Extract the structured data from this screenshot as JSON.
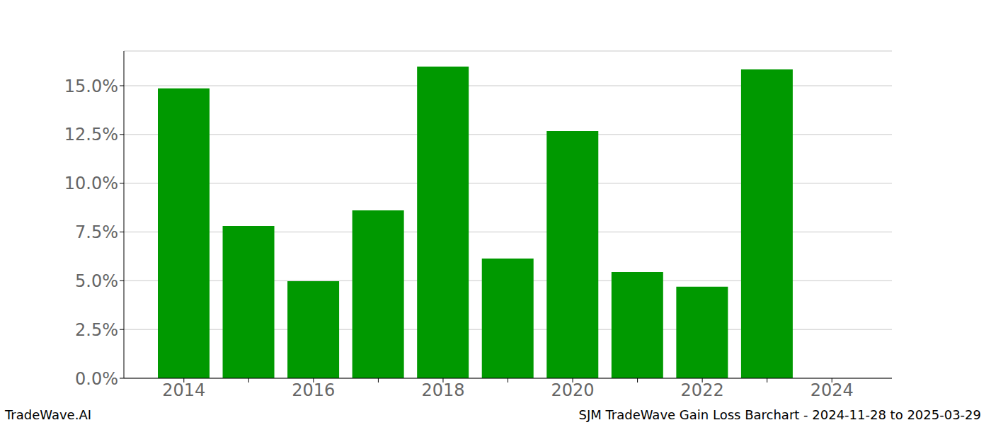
{
  "chart_data": {
    "type": "bar",
    "title": "SJM TradeWave Gain Loss Barchart - 2024-11-28 to 2025-03-29",
    "annotations": [
      "TradeWave.AI"
    ],
    "categories": [
      "2014",
      null,
      "2016",
      null,
      "2018",
      null,
      "2020",
      null,
      "2022",
      null,
      "2024"
    ],
    "values": [
      14.86,
      7.81,
      4.98,
      8.61,
      15.98,
      6.14,
      12.68,
      5.45,
      4.69,
      15.84,
      null
    ],
    "color": "#009900",
    "ylim": [
      0,
      16.78
    ],
    "yticks": [
      {
        "value": 0,
        "label": "0.0%"
      },
      {
        "value": 2.5,
        "label": "2.5%"
      },
      {
        "value": 5,
        "label": "5.0%"
      },
      {
        "value": 7.5,
        "label": "7.5%"
      },
      {
        "value": 10,
        "label": "10.0%"
      },
      {
        "value": 12.5,
        "label": "12.5%"
      },
      {
        "value": 15,
        "label": "15.0%"
      }
    ],
    "grid": true
  }
}
